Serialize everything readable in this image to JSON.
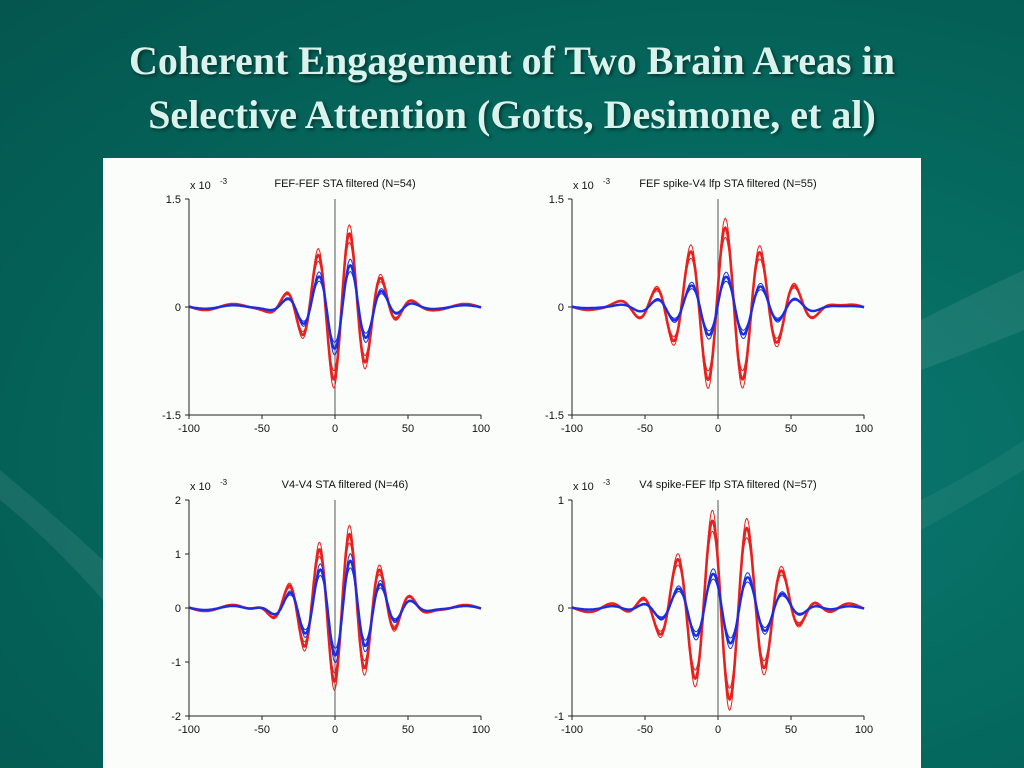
{
  "slide": {
    "title_line1": "Coherent Engagement of Two Brain Areas in",
    "title_line2": "Selective Attention (Gotts, Desimone, et al)"
  },
  "colors": {
    "background": "#056a60",
    "attended": "#e8201e",
    "unattended": "#1a2ee0",
    "figure_bg": "#fbfdfb"
  },
  "chart_data": [
    {
      "type": "line",
      "title": "FEF-FEF STA filtered (N=54)",
      "scale_label": "x 10",
      "scale_exp": "-3",
      "xlim": [
        -100,
        100
      ],
      "ylim": [
        -1.5,
        1.5
      ],
      "xticks": [
        -100,
        -50,
        0,
        50,
        100
      ],
      "yticks": [
        1.5,
        0,
        -1.5
      ],
      "xticklabels": [
        "-100",
        "-50",
        "0",
        "50",
        "100"
      ],
      "yticklabels": [
        "1.5",
        "0",
        "-1.5"
      ],
      "oscillation": {
        "amp_red": 1.05,
        "amp_blue": 0.6,
        "period": 22,
        "phase_shift": 10,
        "decay": 28
      },
      "series": [
        {
          "color": "#e8201e",
          "x": [
            -100,
            -75,
            -60,
            -45,
            -30,
            -20,
            -10,
            -5,
            0,
            5,
            10,
            15,
            20,
            25,
            30,
            35,
            45,
            60,
            75,
            100
          ],
          "values": [
            0,
            0.02,
            -0.05,
            0.08,
            -0.1,
            0.45,
            0.9,
            0.3,
            -1.05,
            -0.2,
            1.0,
            0.4,
            -0.7,
            -0.2,
            0.35,
            0.1,
            -0.12,
            0.05,
            -0.03,
            0
          ]
        },
        {
          "color": "#1a2ee0",
          "x": [
            -100,
            -75,
            -60,
            -45,
            -30,
            -20,
            -10,
            -5,
            0,
            5,
            10,
            15,
            20,
            25,
            30,
            35,
            45,
            60,
            75,
            100
          ],
          "values": [
            0,
            0.01,
            -0.03,
            0.05,
            -0.06,
            0.2,
            0.4,
            0.1,
            -0.55,
            -0.1,
            0.55,
            0.25,
            -0.4,
            -0.1,
            0.2,
            0.05,
            -0.06,
            0.08,
            0,
            0
          ]
        }
      ]
    },
    {
      "type": "line",
      "title": "FEF spike-V4 lfp STA filtered (N=55)",
      "scale_label": "x 10",
      "scale_exp": "-3",
      "xlim": [
        -100,
        100
      ],
      "ylim": [
        -1.5,
        1.5
      ],
      "xticks": [
        -100,
        -50,
        0,
        50,
        100
      ],
      "yticks": [
        1.5,
        0,
        -1.5
      ],
      "xticklabels": [
        "-100",
        "-50",
        "0",
        "50",
        "100"
      ],
      "yticklabels": [
        "1.5",
        "0",
        "-1.5"
      ],
      "oscillation": {
        "amp_red": 1.1,
        "amp_blue": 0.42,
        "period": 24,
        "phase_shift": 5,
        "decay": 40
      },
      "series": [
        {
          "color": "#e8201e",
          "x": [
            -100,
            -75,
            -60,
            -45,
            -30,
            -20,
            -10,
            0,
            5,
            10,
            15,
            20,
            25,
            30,
            35,
            45,
            60,
            75,
            100
          ],
          "values": [
            0,
            0.02,
            -0.05,
            0.15,
            -0.4,
            0.7,
            -1.0,
            0.3,
            1.1,
            -0.2,
            -0.85,
            0.2,
            0.6,
            -0.15,
            -0.35,
            0.2,
            -0.05,
            0.03,
            0
          ]
        },
        {
          "color": "#1a2ee0",
          "x": [
            -100,
            -75,
            -60,
            -45,
            -30,
            -20,
            -10,
            0,
            5,
            10,
            15,
            20,
            25,
            30,
            35,
            45,
            60,
            75,
            100
          ],
          "values": [
            0,
            0.01,
            -0.02,
            0.05,
            -0.15,
            0.28,
            -0.3,
            0.15,
            0.42,
            -0.1,
            -0.3,
            0.08,
            0.2,
            -0.05,
            -0.1,
            0.05,
            -0.02,
            0.01,
            0
          ]
        }
      ]
    },
    {
      "type": "line",
      "title": "V4-V4 STA filtered (N=46)",
      "scale_label": "x 10",
      "scale_exp": "-3",
      "xlim": [
        -100,
        100
      ],
      "ylim": [
        -2,
        2
      ],
      "xticks": [
        -100,
        -50,
        0,
        50,
        100
      ],
      "yticks": [
        2,
        1,
        0,
        -1,
        -2
      ],
      "xticklabels": [
        "-100",
        "-50",
        "0",
        "50",
        "100"
      ],
      "yticklabels": [
        "2",
        "1",
        "0",
        "-1",
        "-2"
      ],
      "oscillation": {
        "amp_red": 1.4,
        "amp_blue": 0.9,
        "period": 21,
        "phase_shift": 10,
        "decay": 32
      },
      "series": [
        {
          "color": "#e8201e",
          "x": [
            -100,
            -75,
            -60,
            -45,
            -30,
            -20,
            -10,
            0,
            5,
            10,
            15,
            20,
            30,
            40,
            50,
            60,
            75,
            100
          ],
          "values": [
            0,
            0.02,
            -0.05,
            0.15,
            -0.6,
            1.0,
            -1.3,
            -0.2,
            1.3,
            -0.4,
            -1.2,
            0.2,
            0.7,
            -0.4,
            0.15,
            -0.05,
            0.02,
            0
          ]
        },
        {
          "color": "#1a2ee0",
          "x": [
            -100,
            -75,
            -60,
            -45,
            -30,
            -20,
            -10,
            0,
            5,
            10,
            15,
            20,
            30,
            40,
            50,
            60,
            75,
            100
          ],
          "values": [
            0,
            0.01,
            -0.03,
            0.1,
            -0.35,
            0.6,
            -0.85,
            -0.1,
            0.9,
            -0.2,
            -0.7,
            0.1,
            0.45,
            -0.25,
            0.08,
            -0.03,
            0.01,
            0
          ]
        }
      ]
    },
    {
      "type": "line",
      "title": "V4 spike-FEF lfp STA filtered (N=57)",
      "scale_label": "x 10",
      "scale_exp": "-3",
      "xlim": [
        -100,
        100
      ],
      "ylim": [
        -1,
        1
      ],
      "xticks": [
        -100,
        -50,
        0,
        50,
        100
      ],
      "yticks": [
        1,
        0,
        -1
      ],
      "xticklabels": [
        "-100",
        "-50",
        "0",
        "50",
        "100"
      ],
      "yticklabels": [
        "1",
        "0",
        "-1"
      ],
      "oscillation": {
        "amp_red": 0.85,
        "amp_blue": 0.33,
        "period": 24,
        "phase_shift": 20,
        "decay": 40
      },
      "series": [
        {
          "color": "#e8201e",
          "x": [
            -100,
            -75,
            -60,
            -45,
            -30,
            -20,
            -10,
            0,
            5,
            10,
            15,
            20,
            25,
            30,
            35,
            45,
            60,
            75,
            100
          ],
          "values": [
            0,
            0.02,
            -0.05,
            0.1,
            -0.3,
            0.3,
            -0.5,
            0.7,
            -0.1,
            -0.8,
            0.1,
            0.85,
            0.0,
            -0.75,
            0.2,
            -0.2,
            0.05,
            -0.02,
            0
          ]
        },
        {
          "color": "#1a2ee0",
          "x": [
            -100,
            -75,
            -60,
            -45,
            -30,
            -20,
            -10,
            0,
            5,
            10,
            15,
            20,
            25,
            30,
            35,
            45,
            60,
            75,
            100
          ],
          "values": [
            0,
            0.01,
            -0.02,
            0.04,
            -0.1,
            0.1,
            -0.15,
            0.28,
            0.0,
            -0.3,
            0.05,
            0.33,
            0.0,
            -0.28,
            0.05,
            -0.1,
            0.02,
            0.0,
            0
          ]
        }
      ]
    }
  ]
}
